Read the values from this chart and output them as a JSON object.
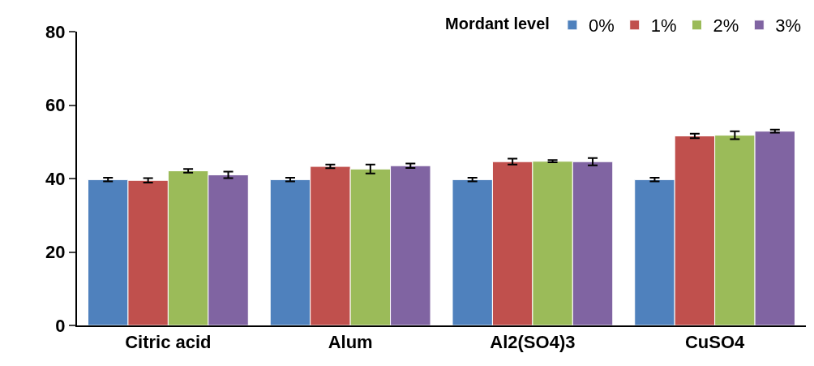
{
  "chart_data": {
    "type": "bar",
    "categories": [
      "Citric acid",
      "Alum",
      "Al2(SO4)3",
      "CuSO4"
    ],
    "legend_title": "Mordant level",
    "legend": "top right",
    "ylim": [
      0,
      80
    ],
    "yticks": [
      0,
      20,
      40,
      60,
      80
    ],
    "series": [
      {
        "name": "0%",
        "color": "#4f81bd",
        "values": [
          39.7,
          39.7,
          39.7,
          39.7
        ],
        "errors": [
          0.5,
          0.5,
          0.5,
          0.5
        ]
      },
      {
        "name": "1%",
        "color": "#c0504d",
        "values": [
          39.5,
          43.3,
          44.6,
          51.6
        ],
        "errors": [
          0.6,
          0.5,
          0.8,
          0.6
        ]
      },
      {
        "name": "2%",
        "color": "#9bbb59",
        "values": [
          42.1,
          42.6,
          44.7,
          51.8
        ],
        "errors": [
          0.5,
          1.2,
          0.3,
          1.1
        ]
      },
      {
        "name": "3%",
        "color": "#8064a2",
        "values": [
          41.0,
          43.5,
          44.6,
          52.9
        ],
        "errors": [
          0.9,
          0.6,
          1.0,
          0.4
        ]
      }
    ]
  }
}
